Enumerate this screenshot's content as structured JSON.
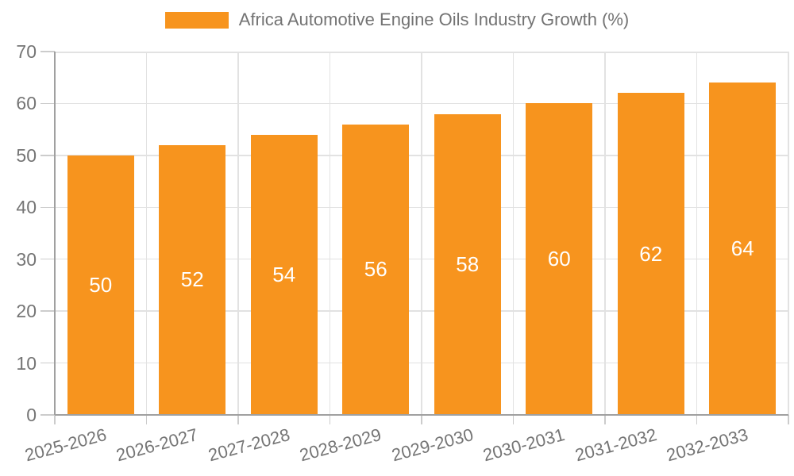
{
  "legend": {
    "label": "Africa Automotive Engine Oils Industry Growth (%)"
  },
  "colors": {
    "bar": "#f7941e",
    "grid": "#e2e2e2",
    "axis": "#a0a0a0",
    "tick": "#cccccc",
    "axis_label_text": "#757575",
    "legend_text": "#737373",
    "value_label_text": "#ffffff",
    "background": "#ffffff"
  },
  "chart_data": {
    "type": "bar",
    "title": "Africa Automotive Engine Oils Industry Growth (%)",
    "series_name": "Africa Automotive Engine Oils Industry Growth (%)",
    "categories": [
      "2025-2026",
      "2026-2027",
      "2027-2028",
      "2028-2029",
      "2029-2030",
      "2030-2031",
      "2031-2032",
      "2032-2033"
    ],
    "values": [
      50,
      52,
      54,
      56,
      58,
      60,
      62,
      64
    ],
    "value_labels": [
      "50",
      "52",
      "54",
      "56",
      "58",
      "60",
      "62",
      "64"
    ],
    "xlabel": "",
    "ylabel": "",
    "ylim": [
      0,
      70
    ],
    "yticks": [
      0,
      10,
      20,
      30,
      40,
      50,
      60,
      70
    ],
    "grid": true,
    "legend_position": "top",
    "bar_value_labels_inside": true,
    "x_label_rotation_deg": -15
  }
}
